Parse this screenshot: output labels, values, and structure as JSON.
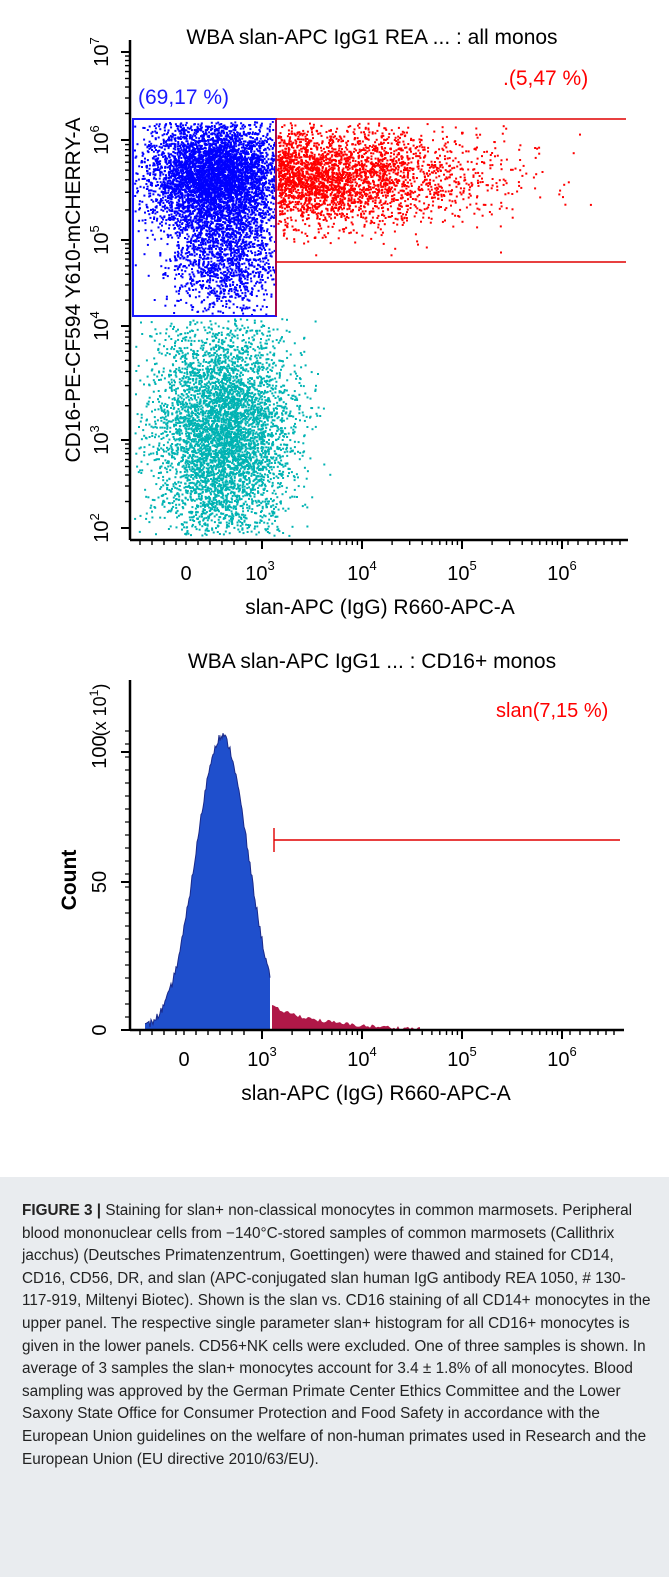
{
  "chart_data": [
    {
      "type": "scatter",
      "title": "WBA slan-APC IgG1 REA ... : all monos",
      "xlabel": "slan-APC (IgG) R660-APC-A",
      "ylabel": "CD16-PE-CF594 Y610-mCHERRY-A",
      "x_scale": "biexponential",
      "y_scale": "log",
      "x_ticks": [
        "0",
        "10",
        "10",
        "10",
        "10"
      ],
      "x_tick_exponents": [
        "",
        "3",
        "4",
        "5",
        "6"
      ],
      "y_ticks": [
        "10",
        "10",
        "10",
        "10",
        "10",
        "10"
      ],
      "y_tick_exponents": [
        "2",
        "3",
        "4",
        "5",
        "6",
        "7"
      ],
      "ylim": [
        100,
        10000000
      ],
      "gates": [
        {
          "label": "(69,17 %)",
          "color": "#1a1aff"
        },
        {
          "label": ".(5,47 %)",
          "color": "#ff0000"
        }
      ],
      "populations": [
        {
          "name": "",
          "color": "#0000ff"
        },
        {
          "name": "",
          "color": "#ff0000"
        },
        {
          "name": "",
          "color": "#00b3b3"
        }
      ]
    },
    {
      "type": "histogram",
      "title": "WBA slan-APC IgG1 ... : CD16+ monos",
      "xlabel": "slan-APC (IgG) R660-APC-A",
      "ylabel": "Count",
      "y_multiplier": "(x 10",
      "y_multiplier_exponent": "1",
      "y_ticks": [
        "0",
        "50",
        "100"
      ],
      "ylim": [
        0,
        120
      ],
      "x_ticks": [
        "0",
        "10",
        "10",
        "10",
        "10"
      ],
      "x_tick_exponents": [
        "",
        "3",
        "4",
        "5",
        "6"
      ],
      "peak_count": 113,
      "gate": {
        "label": "slan(7,15 %)",
        "color": "#ff0000"
      },
      "fill_colors": {
        "negative": "#1f4fcc",
        "positive": "#b01848"
      }
    }
  ],
  "caption": {
    "figure_label": "FIGURE 3 |",
    "text": " Staining for slan+ non-classical monocytes in common marmosets. Peripheral blood mononuclear cells from −140°C-stored samples of common marmosets (Callithrix jacchus) (Deutsches Primatenzentrum, Goettingen) were thawed and stained for CD14, CD16, CD56, DR, and slan (APC-conjugated slan human IgG antibody REA 1050, # 130-117-919, Miltenyi Biotec). Shown is the slan vs. CD16 staining of all CD14+ monocytes in the upper panel. The respective single parameter slan+ histogram for all CD16+ monocytes is given in the lower panels. CD56+NK cells were excluded. One of three samples is shown. In average of 3 samples the slan+ monocytes account for 3.4 ± 1.8% of all monocytes. Blood sampling was approved by the German Primate Center Ethics Committee and the Lower Saxony State Office for Consumer Protection and Food Safety in accordance with the European Union guidelines on the welfare of non-human primates used in Research and the European Union (EU directive 2010/63/EU)."
  }
}
